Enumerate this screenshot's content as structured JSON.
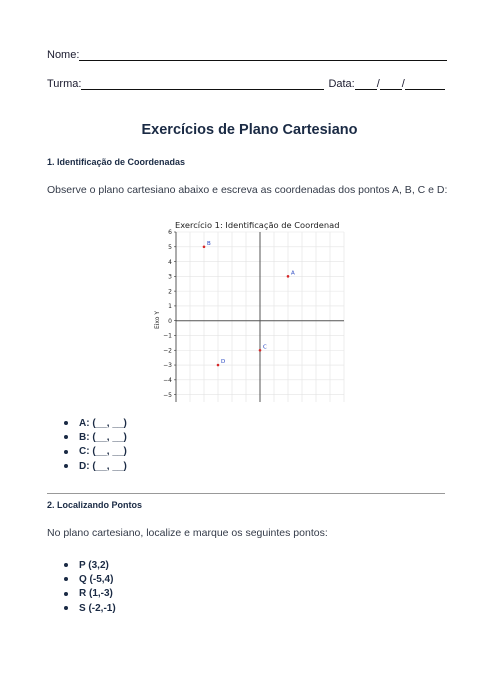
{
  "header": {
    "name_label": "Nome:",
    "class_label": "Turma:",
    "date_label": "Data:",
    "date_sep": "/"
  },
  "title": "Exercícios de Plano Cartesiano",
  "section1": {
    "heading": "1. Identificação de Coordenadas",
    "instruction": "Observe o plano cartesiano abaixo e escreva as coordenadas dos pontos A, B, C e D:",
    "answers": [
      {
        "label": "A:",
        "blank": "(__, __)"
      },
      {
        "label": "B:",
        "blank": "(__, __)"
      },
      {
        "label": "C:",
        "blank": "(__, __)"
      },
      {
        "label": "D:",
        "blank": "(__, __)"
      }
    ]
  },
  "section2": {
    "heading": "2. Localizando Pontos",
    "instruction": "No plano cartesiano, localize e marque os seguintes pontos:",
    "points": [
      "P (3,2)",
      "Q (-5,4)",
      "R (1,-3)",
      "S (-2,-1)"
    ]
  },
  "colors": {
    "point": "#d62728",
    "label": "#1f3fbf",
    "axis": "#555555",
    "grid": "#e3e3e3"
  },
  "chart_data": {
    "type": "scatter",
    "title": "Exercício 1: Identificação de Coordenad",
    "xlabel": "",
    "ylabel": "Eixo Y",
    "xlim": [
      -6,
      6
    ],
    "ylim": [
      -5.5,
      6
    ],
    "yticks": [
      6,
      5,
      4,
      3,
      2,
      1,
      0,
      -1,
      -2,
      -3,
      -4,
      -5
    ],
    "grid": true,
    "points": [
      {
        "label": "A",
        "x": 2,
        "y": 3
      },
      {
        "label": "B",
        "x": -4,
        "y": 5
      },
      {
        "label": "C",
        "x": 0,
        "y": -2
      },
      {
        "label": "D",
        "x": -3,
        "y": -3
      }
    ]
  }
}
